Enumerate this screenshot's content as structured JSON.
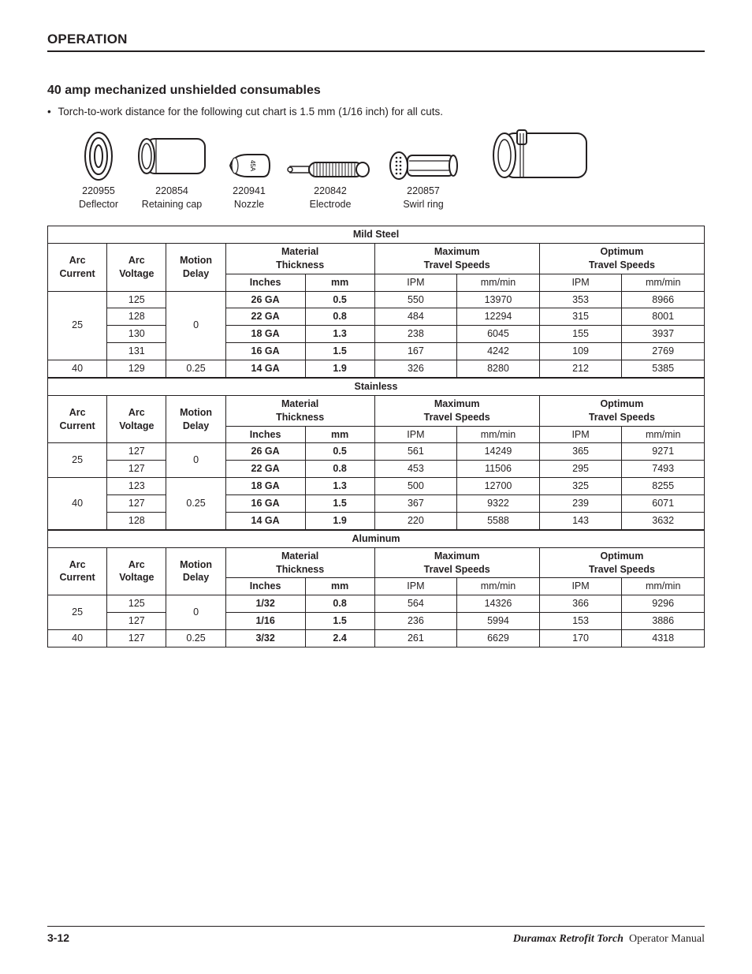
{
  "section_heading": "OPERATION",
  "sub_heading": "40 amp mechanized unshielded consumables",
  "note_text": "Torch-to-work distance for the following cut chart is 1.5 mm (1/16 inch) for all cuts.",
  "parts": [
    {
      "num": "220955",
      "label": "Deflector"
    },
    {
      "num": "220854",
      "label": "Retaining cap"
    },
    {
      "num": "220941",
      "label": "Nozzle"
    },
    {
      "num": "220842",
      "label": "Electrode"
    },
    {
      "num": "220857",
      "label": "Swirl ring"
    },
    {
      "num": "",
      "label": ""
    }
  ],
  "headers": {
    "arc_current": "Arc Current",
    "arc_voltage": "Arc Voltage",
    "motion_delay": "Motion Delay",
    "mat_thick": "Material Thickness",
    "max_speed": "Maximum Travel Speeds",
    "opt_speed": "Optimum Travel Speeds",
    "inches": "Inches",
    "mm": "mm",
    "ipm": "IPM",
    "mmmin": "mm/min"
  },
  "tables": [
    {
      "title": "Mild Steel",
      "groups": [
        {
          "current": "25",
          "delay": "0",
          "rows": [
            {
              "voltage": "125",
              "in": "26 GA",
              "mm": "0.5",
              "mipm": "550",
              "mmm": "13970",
              "oipm": "353",
              "omm": "8966"
            },
            {
              "voltage": "128",
              "in": "22 GA",
              "mm": "0.8",
              "mipm": "484",
              "mmm": "12294",
              "oipm": "315",
              "omm": "8001"
            },
            {
              "voltage": "130",
              "in": "18 GA",
              "mm": "1.3",
              "mipm": "238",
              "mmm": "6045",
              "oipm": "155",
              "omm": "3937"
            },
            {
              "voltage": "131",
              "in": "16 GA",
              "mm": "1.5",
              "mipm": "167",
              "mmm": "4242",
              "oipm": "109",
              "omm": "2769"
            }
          ]
        },
        {
          "current": "40",
          "delay": "0.25",
          "rows": [
            {
              "voltage": "129",
              "in": "14 GA",
              "mm": "1.9",
              "mipm": "326",
              "mmm": "8280",
              "oipm": "212",
              "omm": "5385"
            }
          ]
        }
      ]
    },
    {
      "title": "Stainless",
      "groups": [
        {
          "current": "25",
          "delay": "0",
          "rows": [
            {
              "voltage": "127",
              "in": "26 GA",
              "mm": "0.5",
              "mipm": "561",
              "mmm": "14249",
              "oipm": "365",
              "omm": "9271"
            },
            {
              "voltage": "127",
              "in": "22 GA",
              "mm": "0.8",
              "mipm": "453",
              "mmm": "11506",
              "oipm": "295",
              "omm": "7493"
            }
          ]
        },
        {
          "current": "40",
          "delay": "0.25",
          "rows": [
            {
              "voltage": "123",
              "in": "18 GA",
              "mm": "1.3",
              "mipm": "500",
              "mmm": "12700",
              "oipm": "325",
              "omm": "8255"
            },
            {
              "voltage": "127",
              "in": "16 GA",
              "mm": "1.5",
              "mipm": "367",
              "mmm": "9322",
              "oipm": "239",
              "omm": "6071"
            },
            {
              "voltage": "128",
              "in": "14 GA",
              "mm": "1.9",
              "mipm": "220",
              "mmm": "5588",
              "oipm": "143",
              "omm": "3632"
            }
          ]
        }
      ]
    },
    {
      "title": "Aluminum",
      "groups": [
        {
          "current": "25",
          "delay": "0",
          "rows": [
            {
              "voltage": "125",
              "in": "1/32",
              "mm": "0.8",
              "mipm": "564",
              "mmm": "14326",
              "oipm": "366",
              "omm": "9296"
            },
            {
              "voltage": "127",
              "in": "1/16",
              "mm": "1.5",
              "mipm": "236",
              "mmm": "5994",
              "oipm": "153",
              "omm": "3886"
            }
          ]
        },
        {
          "current": "40",
          "delay": "0.25",
          "rows": [
            {
              "voltage": "127",
              "in": "3/32",
              "mm": "2.4",
              "mipm": "261",
              "mmm": "6629",
              "oipm": "170",
              "omm": "4318"
            }
          ]
        }
      ]
    }
  ],
  "footer": {
    "page_num": "3-12",
    "product": "Duramax Retrofit Torch",
    "doc": "Operator Manual"
  },
  "col_widths_pct": [
    8.2,
    8.2,
    8.2,
    11.0,
    9.6,
    11.4,
    11.4,
    11.4,
    11.4
  ]
}
